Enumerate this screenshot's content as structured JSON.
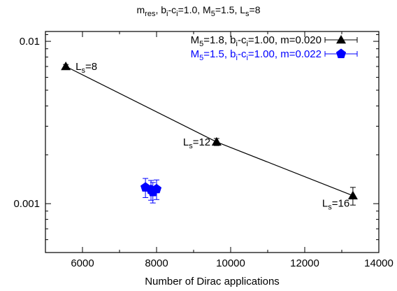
{
  "chart_data": {
    "type": "scatter",
    "title_parts": [
      {
        "t": "m"
      },
      {
        "t": "res",
        "sub": true
      },
      {
        "t": ", b"
      },
      {
        "t": "i",
        "sub": true
      },
      {
        "t": "-c"
      },
      {
        "t": "i",
        "sub": true
      },
      {
        "t": "=1.0, M"
      },
      {
        "t": "5",
        "sub": true
      },
      {
        "t": "=1.5, L"
      },
      {
        "t": "s",
        "sub": true
      },
      {
        "t": "=8"
      }
    ],
    "xlabel": "Number of Dirac applications",
    "ylabel": "",
    "xlim": [
      5000,
      14000
    ],
    "ylim": [
      0.0005,
      0.0115
    ],
    "y_scale": "log",
    "x_ticks": [
      "6000",
      "8000",
      "10000",
      "12000",
      "14000"
    ],
    "x_tick_values": [
      6000,
      8000,
      10000,
      12000,
      14000
    ],
    "y_ticks": [
      "0.01",
      "0.001"
    ],
    "y_tick_values": [
      0.01,
      0.001
    ],
    "grid": false,
    "legend_position": "top-right",
    "series": [
      {
        "name_parts": [
          {
            "t": "M"
          },
          {
            "t": "5",
            "sub": true
          },
          {
            "t": "=1.8, b"
          },
          {
            "t": "i",
            "sub": true
          },
          {
            "t": "-c"
          },
          {
            "t": "i",
            "sub": true
          },
          {
            "t": "=1.00, m=0.020"
          }
        ],
        "color": "#000000",
        "marker": "triangle",
        "connected": true,
        "x": [
          5550,
          9620,
          13300
        ],
        "y": [
          0.007,
          0.0024,
          0.00112
        ],
        "yerr": [
          0.0002,
          0.00012,
          0.00014
        ],
        "labels": [
          [
            {
              "t": "L"
            },
            {
              "t": "s",
              "sub": true
            },
            {
              "t": "=8"
            }
          ],
          [
            {
              "t": "L"
            },
            {
              "t": "s",
              "sub": true
            },
            {
              "t": "=12"
            }
          ],
          [
            {
              "t": "L"
            },
            {
              "t": "s",
              "sub": true
            },
            {
              "t": "=16"
            }
          ]
        ]
      },
      {
        "name_parts": [
          {
            "t": "M"
          },
          {
            "t": "5",
            "sub": true
          },
          {
            "t": "=1.5, b"
          },
          {
            "t": "i",
            "sub": true
          },
          {
            "t": "-c"
          },
          {
            "t": "i",
            "sub": true
          },
          {
            "t": "=1.00, m=0.022"
          }
        ],
        "color": "#0000ff",
        "marker": "pentagon",
        "connected": false,
        "x": [
          7700,
          7850,
          7900,
          8000
        ],
        "y": [
          0.00126,
          0.00122,
          0.00118,
          0.00123
        ],
        "yerr": [
          0.00017,
          0.00017,
          0.00017,
          0.00017
        ],
        "labels": []
      }
    ]
  }
}
